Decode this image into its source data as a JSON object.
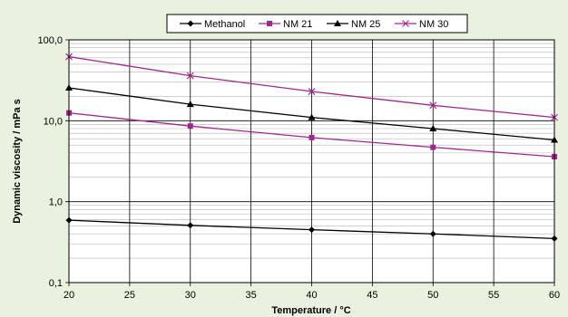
{
  "chart_data": {
    "type": "line",
    "xlabel": "Temperature / °C",
    "ylabel": "Dynamic viscosity / mPa s",
    "x": [
      20,
      30,
      40,
      50,
      60
    ],
    "xlim": [
      20,
      60
    ],
    "ylim": [
      0.1,
      100
    ],
    "yscale": "log",
    "x_ticks": [
      20,
      25,
      30,
      35,
      40,
      45,
      50,
      55,
      60
    ],
    "x_tick_labels": [
      "20",
      "25",
      "30",
      "35",
      "40",
      "45",
      "50",
      "55",
      "60"
    ],
    "y_ticks": [
      0.1,
      1,
      10,
      100
    ],
    "y_tick_labels": [
      "0,1",
      "1,0",
      "10,0",
      "100,0"
    ],
    "grid": true,
    "legend": "top",
    "series": [
      {
        "name": "Methanol",
        "color": "#000000",
        "marker": "diamond",
        "values": [
          0.59,
          0.51,
          0.45,
          0.4,
          0.35
        ]
      },
      {
        "name": "NM 21",
        "color": "#a0288c",
        "marker": "square",
        "values": [
          12.5,
          8.6,
          6.2,
          4.7,
          3.6
        ]
      },
      {
        "name": "NM 25",
        "color": "#000000",
        "marker": "triangle",
        "values": [
          25.5,
          16.0,
          11.0,
          8.0,
          5.8
        ]
      },
      {
        "name": "NM 30",
        "color": "#a0288c",
        "marker": "cross",
        "values": [
          62.0,
          36.0,
          23.0,
          15.5,
          11.0
        ]
      }
    ]
  }
}
